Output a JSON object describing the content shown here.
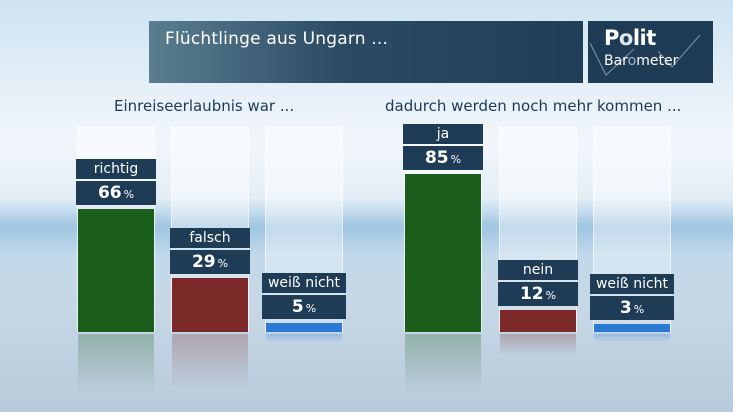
{
  "header": {
    "title": "Flüchtlinge aus Ungarn ...",
    "logo_line1_a": "P",
    "logo_line1_o": "o",
    "logo_line1_b": "lit",
    "logo_line2_a": "Bar",
    "logo_line2_o": "o",
    "logo_line2_b": "meter"
  },
  "colors": {
    "green": "#1b5e1c",
    "red": "#7b2a29",
    "blue": "#2b7ad3",
    "label_bg": "#1f3c57"
  },
  "chart_data": [
    {
      "type": "bar",
      "title": "Einreiseerlaubnis war ...",
      "categories": [
        "richtig",
        "falsch",
        "weiß nicht"
      ],
      "values": [
        66,
        29,
        5
      ],
      "unit": "%",
      "ylim": [
        0,
        100
      ],
      "colors": [
        "#1b5e1c",
        "#7b2a29",
        "#2b7ad3"
      ]
    },
    {
      "type": "bar",
      "title": "dadurch werden noch mehr kommen ...",
      "categories": [
        "ja",
        "nein",
        "weiß nicht"
      ],
      "values": [
        85,
        12,
        3
      ],
      "unit": "%",
      "ylim": [
        0,
        100
      ],
      "colors": [
        "#1b5e1c",
        "#7b2a29",
        "#2b7ad3"
      ]
    }
  ]
}
